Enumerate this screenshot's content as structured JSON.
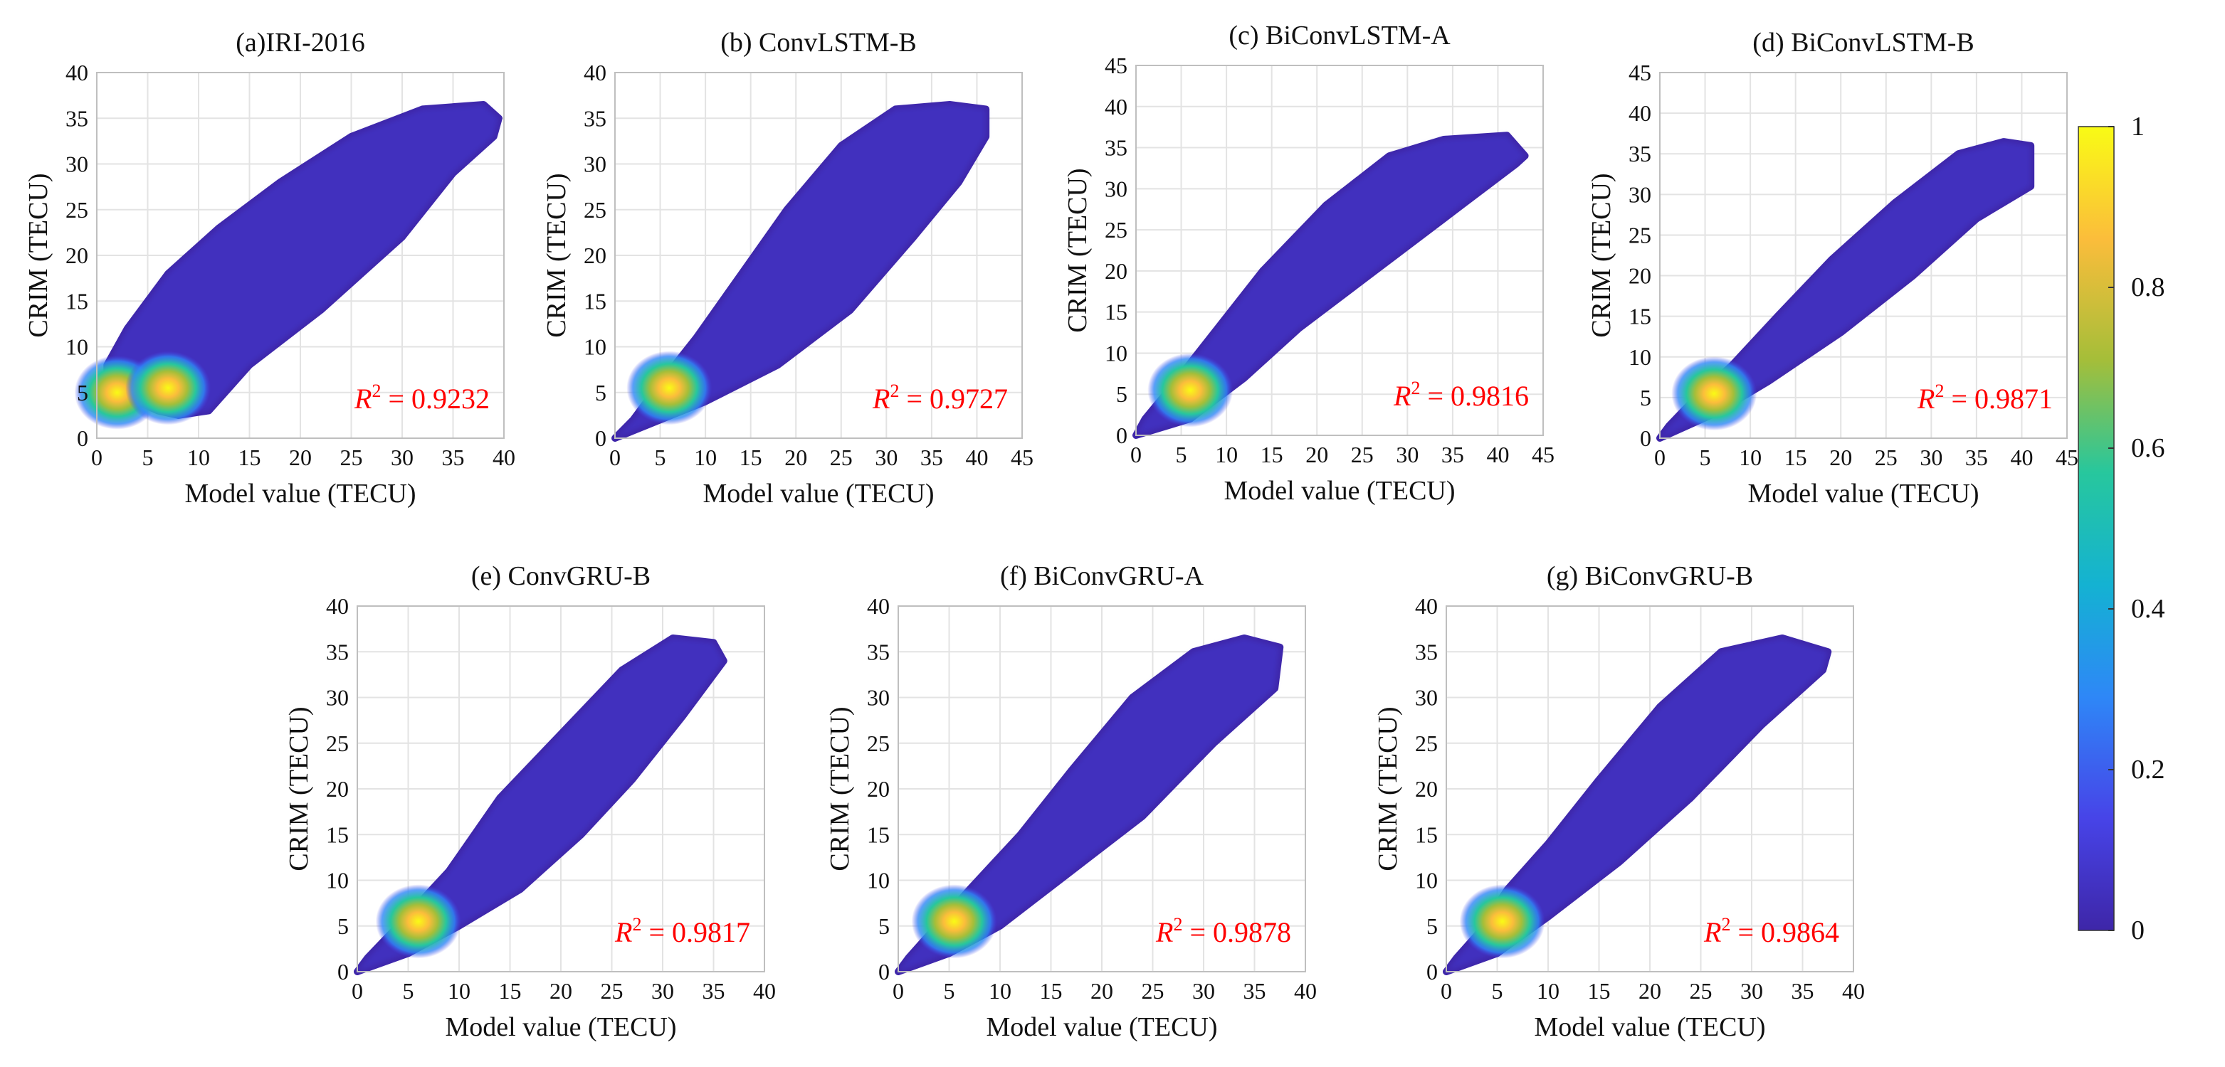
{
  "colorbar": {
    "ticks": [
      {
        "value": 1,
        "label": "1"
      },
      {
        "value": 0.8,
        "label": "0.8"
      },
      {
        "value": 0.6,
        "label": "0.6"
      },
      {
        "value": 0.4,
        "label": "0.4"
      },
      {
        "value": 0.2,
        "label": "0.2"
      },
      {
        "value": 0,
        "label": "0"
      }
    ],
    "colors": [
      "#3e26a8",
      "#4744e8",
      "#2e87f7",
      "#14b2d2",
      "#27c79d",
      "#a5be39",
      "#fbbd3b",
      "#f9fb15"
    ]
  },
  "colors": {
    "r2_text": "#ff0000",
    "density_low": "#3e26a8",
    "density_high": "#f9fb15"
  },
  "chart_data": [
    {
      "type": "scatter",
      "title": "(a)IRI-2016",
      "xlabel": "Model value (TECU)",
      "ylabel": "CRIM (TECU)",
      "xlim": [
        0,
        40
      ],
      "ylim": [
        0,
        40
      ],
      "xticks": [
        0,
        5,
        10,
        15,
        20,
        25,
        30,
        35,
        40
      ],
      "yticks": [
        0,
        5,
        10,
        15,
        20,
        25,
        30,
        35,
        40
      ],
      "r2_label": "R",
      "r2_value": "= 0.9232",
      "density_hotspots": [
        [
          2,
          5
        ],
        [
          7,
          5.5
        ]
      ],
      "point_cloud_outline": [
        [
          1,
          3.5
        ],
        [
          4,
          4
        ],
        [
          6,
          3
        ],
        [
          8,
          2.5
        ],
        [
          11,
          3
        ],
        [
          15,
          8
        ],
        [
          22,
          14
        ],
        [
          30,
          22
        ],
        [
          35,
          29
        ],
        [
          39,
          33
        ],
        [
          39.5,
          35
        ],
        [
          38,
          36.5
        ],
        [
          32,
          36
        ],
        [
          25,
          33
        ],
        [
          18,
          28
        ],
        [
          12,
          23
        ],
        [
          7,
          18
        ],
        [
          3,
          12
        ],
        [
          1,
          8
        ]
      ]
    },
    {
      "type": "scatter",
      "title": "(b) ConvLSTM-B",
      "xlabel": "Model value (TECU)",
      "ylabel": "CRIM (TECU)",
      "xlim": [
        0,
        45
      ],
      "ylim": [
        0,
        40
      ],
      "xticks": [
        0,
        5,
        10,
        15,
        20,
        25,
        30,
        35,
        40,
        45
      ],
      "yticks": [
        0,
        5,
        10,
        15,
        20,
        25,
        30,
        35,
        40
      ],
      "r2_label": "R",
      "r2_value": "= 0.9727",
      "density_hotspots": [
        [
          6,
          5.5
        ]
      ],
      "point_cloud_outline": [
        [
          0,
          0
        ],
        [
          5,
          2
        ],
        [
          10,
          4
        ],
        [
          18,
          8
        ],
        [
          26,
          14
        ],
        [
          33,
          22
        ],
        [
          38,
          28
        ],
        [
          41,
          33
        ],
        [
          41,
          36
        ],
        [
          37,
          36.5
        ],
        [
          31,
          36
        ],
        [
          25,
          32
        ],
        [
          19,
          25
        ],
        [
          14,
          18
        ],
        [
          9,
          11
        ],
        [
          5,
          6
        ],
        [
          2,
          2
        ]
      ]
    },
    {
      "type": "scatter",
      "title": "(c) BiConvLSTM-A",
      "xlabel": "Model value (TECU)",
      "ylabel": "CRIM (TECU)",
      "xlim": [
        0,
        45
      ],
      "ylim": [
        0,
        45
      ],
      "xticks": [
        0,
        5,
        10,
        15,
        20,
        25,
        30,
        35,
        40,
        45
      ],
      "yticks": [
        0,
        5,
        10,
        15,
        20,
        25,
        30,
        35,
        40,
        45
      ],
      "r2_label": "R",
      "r2_value": "= 0.9816",
      "density_hotspots": [
        [
          6,
          5.5
        ]
      ],
      "point_cloud_outline": [
        [
          0,
          0
        ],
        [
          6,
          2
        ],
        [
          12,
          7
        ],
        [
          18,
          13
        ],
        [
          24,
          18
        ],
        [
          30,
          23
        ],
        [
          36,
          28
        ],
        [
          42,
          33
        ],
        [
          43,
          34
        ],
        [
          41,
          36.5
        ],
        [
          34,
          36
        ],
        [
          28,
          34
        ],
        [
          21,
          28
        ],
        [
          14,
          20
        ],
        [
          9,
          13
        ],
        [
          4,
          6
        ],
        [
          1,
          2
        ]
      ]
    },
    {
      "type": "scatter",
      "title": "(d) BiConvLSTM-B",
      "xlabel": "Model value (TECU)",
      "ylabel": "CRIM (TECU)",
      "xlim": [
        0,
        45
      ],
      "ylim": [
        0,
        45
      ],
      "xticks": [
        0,
        5,
        10,
        15,
        20,
        25,
        30,
        35,
        40,
        45
      ],
      "yticks": [
        0,
        5,
        10,
        15,
        20,
        25,
        30,
        35,
        40,
        45
      ],
      "r2_label": "R",
      "r2_value": "= 0.9871",
      "density_hotspots": [
        [
          6,
          5.5
        ]
      ],
      "point_cloud_outline": [
        [
          0,
          0
        ],
        [
          6,
          3
        ],
        [
          12,
          7
        ],
        [
          20,
          13
        ],
        [
          28,
          20
        ],
        [
          35,
          27
        ],
        [
          41,
          31
        ],
        [
          41,
          36
        ],
        [
          38,
          36.5
        ],
        [
          33,
          35
        ],
        [
          26,
          29
        ],
        [
          19,
          22
        ],
        [
          13,
          15
        ],
        [
          8,
          9
        ],
        [
          4,
          5
        ],
        [
          1,
          1.5
        ]
      ]
    },
    {
      "type": "scatter",
      "title": "(e) ConvGRU-B",
      "xlabel": "Model value (TECU)",
      "ylabel": "CRIM (TECU)",
      "xlim": [
        0,
        40
      ],
      "ylim": [
        0,
        40
      ],
      "xticks": [
        0,
        5,
        10,
        15,
        20,
        25,
        30,
        35,
        40
      ],
      "yticks": [
        0,
        5,
        10,
        15,
        20,
        25,
        30,
        35,
        40
      ],
      "r2_label": "R",
      "r2_value": "= 0.9817",
      "density_hotspots": [
        [
          6,
          5.5
        ]
      ],
      "point_cloud_outline": [
        [
          0,
          0
        ],
        [
          5,
          2
        ],
        [
          10,
          5
        ],
        [
          16,
          9
        ],
        [
          22,
          15
        ],
        [
          27,
          21
        ],
        [
          32,
          28
        ],
        [
          36,
          34
        ],
        [
          35,
          36
        ],
        [
          31,
          36.5
        ],
        [
          26,
          33
        ],
        [
          20,
          26
        ],
        [
          14,
          19
        ],
        [
          9,
          11
        ],
        [
          4,
          5
        ],
        [
          1,
          1.5
        ]
      ]
    },
    {
      "type": "scatter",
      "title": "(f) BiConvGRU-A",
      "xlabel": "Model value (TECU)",
      "ylabel": "CRIM (TECU)",
      "xlim": [
        0,
        40
      ],
      "ylim": [
        0,
        40
      ],
      "xticks": [
        0,
        5,
        10,
        15,
        20,
        25,
        30,
        35,
        40
      ],
      "yticks": [
        0,
        5,
        10,
        15,
        20,
        25,
        30,
        35,
        40
      ],
      "r2_label": "R",
      "r2_value": "= 0.9878",
      "density_hotspots": [
        [
          5.5,
          5.5
        ]
      ],
      "point_cloud_outline": [
        [
          0,
          0
        ],
        [
          5,
          2
        ],
        [
          10,
          5
        ],
        [
          17,
          11
        ],
        [
          24,
          17
        ],
        [
          31,
          25
        ],
        [
          37,
          31
        ],
        [
          37.5,
          35.5
        ],
        [
          34,
          36.5
        ],
        [
          29,
          35
        ],
        [
          23,
          30
        ],
        [
          17,
          22
        ],
        [
          12,
          15
        ],
        [
          7,
          9
        ],
        [
          3,
          4
        ],
        [
          1,
          1.5
        ]
      ]
    },
    {
      "type": "scatter",
      "title": "(g) BiConvGRU-B",
      "xlabel": "Model value (TECU)",
      "ylabel": "CRIM (TECU)",
      "xlim": [
        0,
        40
      ],
      "ylim": [
        0,
        40
      ],
      "xticks": [
        0,
        5,
        10,
        15,
        20,
        25,
        30,
        35,
        40
      ],
      "yticks": [
        0,
        5,
        10,
        15,
        20,
        25,
        30,
        35,
        40
      ],
      "r2_label": "R",
      "r2_value": "= 0.9864",
      "density_hotspots": [
        [
          5.5,
          5.5
        ]
      ],
      "point_cloud_outline": [
        [
          0,
          0
        ],
        [
          5,
          2
        ],
        [
          10,
          6
        ],
        [
          17,
          12
        ],
        [
          24,
          19
        ],
        [
          31,
          27
        ],
        [
          37,
          33
        ],
        [
          37.5,
          35
        ],
        [
          33,
          36.5
        ],
        [
          27,
          35
        ],
        [
          21,
          29
        ],
        [
          15,
          21
        ],
        [
          10,
          14
        ],
        [
          6,
          9
        ],
        [
          3,
          4
        ],
        [
          1,
          1.5
        ]
      ]
    }
  ]
}
